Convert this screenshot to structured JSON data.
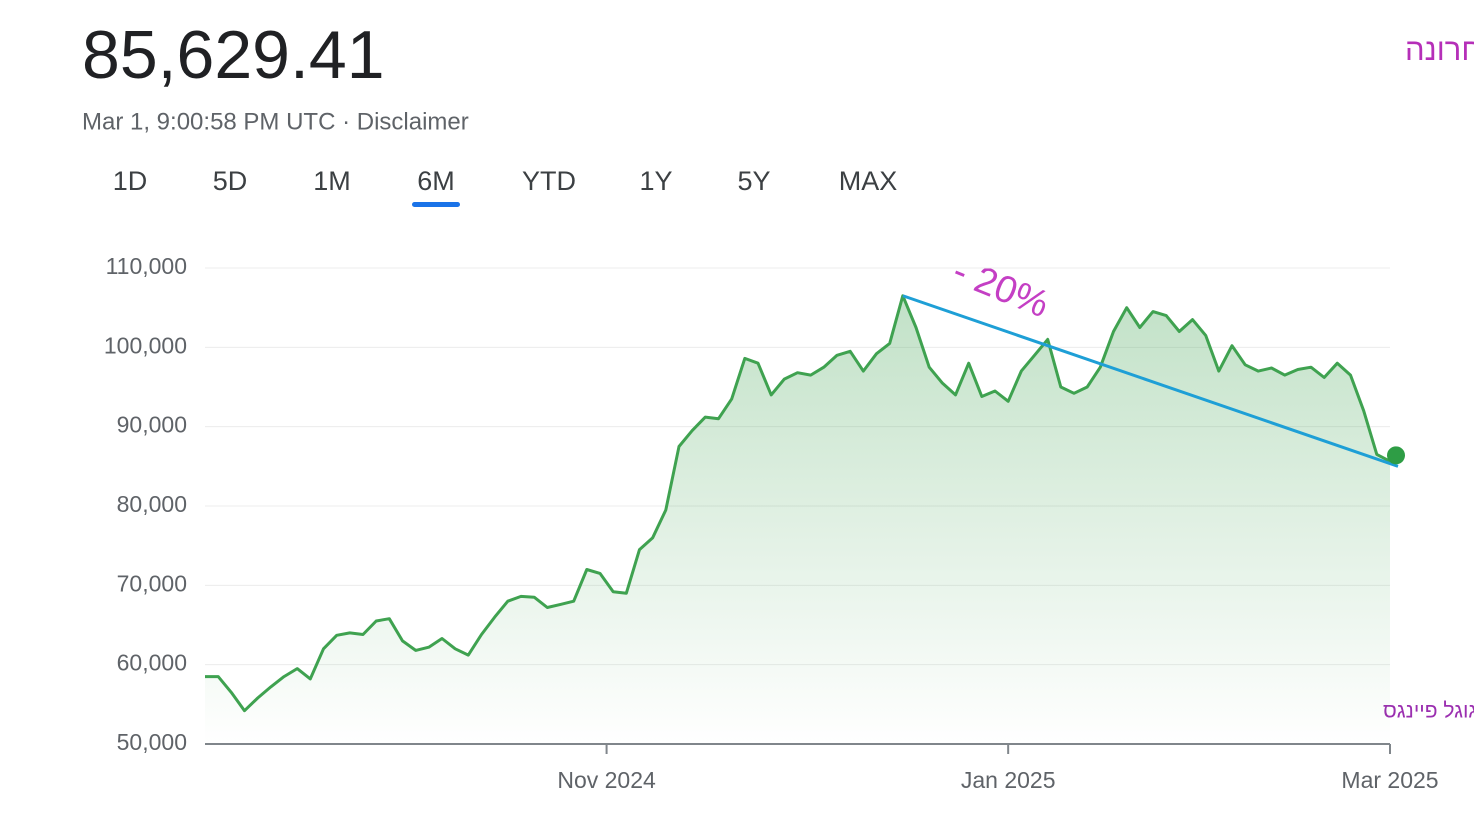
{
  "header": {
    "price": "85,629.41",
    "timestamp": "Mar 1, 9:00:58 PM UTC · Disclaimer",
    "tabs": [
      "1D",
      "5D",
      "1M",
      "6M",
      "YTD",
      "1Y",
      "5Y",
      "MAX"
    ],
    "selected_tab": 3
  },
  "chart_data": {
    "type": "line",
    "title": "ביטקוין בחצי השנה האחרונה",
    "annotations": [
      "- 20%",
      "מקור: גוגל פיינגס"
    ],
    "color": "#3fa250",
    "trend_color": "#1e9fd6",
    "values": [
      58500,
      58500,
      56500,
      54200,
      55800,
      57200,
      58500,
      59500,
      58200,
      62000,
      63700,
      64000,
      63800,
      65500,
      65800,
      63000,
      61800,
      62200,
      63300,
      62000,
      61200,
      63800,
      66000,
      68000,
      68600,
      68500,
      67200,
      67600,
      68000,
      72000,
      71500,
      69200,
      69000,
      74500,
      76000,
      79500,
      87500,
      89500,
      91200,
      91000,
      93500,
      98600,
      98000,
      94000,
      96000,
      96800,
      96500,
      97500,
      99000,
      99500,
      97000,
      99200,
      100500,
      106500,
      102500,
      97500,
      95500,
      94000,
      98000,
      93800,
      94500,
      93200,
      97000,
      99000,
      101000,
      95000,
      94200,
      95000,
      97500,
      102000,
      105000,
      102500,
      104500,
      104000,
      102000,
      103500,
      101500,
      97000,
      100200,
      97800,
      97000,
      97400,
      96500,
      97200,
      97500,
      96200,
      98000,
      96500,
      92000,
      86500,
      85629.41
    ],
    "xlim": [
      0,
      90
    ],
    "xticks": [
      {
        "value": 30.5,
        "label": "Nov 2024"
      },
      {
        "value": 61,
        "label": "Jan 2025"
      },
      {
        "value": 90,
        "label": "Mar 2025"
      }
    ],
    "ylim": [
      50000,
      110000
    ],
    "yticks": [
      {
        "value": 50000,
        "label": "50,000"
      },
      {
        "value": 60000,
        "label": "60,000"
      },
      {
        "value": 70000,
        "label": "70,000"
      },
      {
        "value": 80000,
        "label": "80,000"
      },
      {
        "value": 90000,
        "label": "90,000"
      },
      {
        "value": 100000,
        "label": "100,000"
      },
      {
        "value": 110000,
        "label": "110,000"
      }
    ],
    "grid": true
  }
}
